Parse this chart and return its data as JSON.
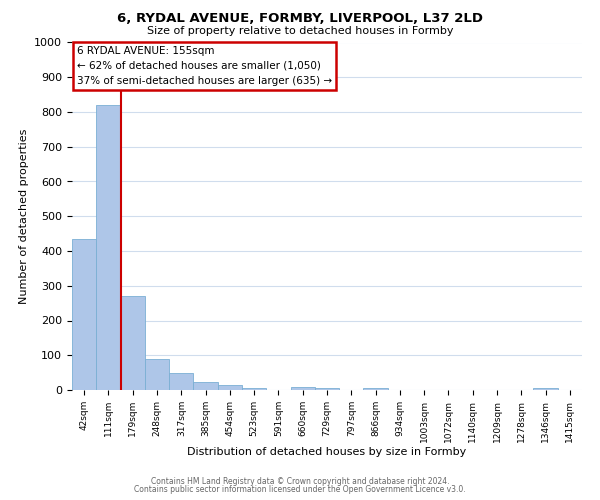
{
  "title1": "6, RYDAL AVENUE, FORMBY, LIVERPOOL, L37 2LD",
  "title2": "Size of property relative to detached houses in Formby",
  "xlabel": "Distribution of detached houses by size in Formby",
  "ylabel": "Number of detached properties",
  "bar_labels": [
    "42sqm",
    "111sqm",
    "179sqm",
    "248sqm",
    "317sqm",
    "385sqm",
    "454sqm",
    "523sqm",
    "591sqm",
    "660sqm",
    "729sqm",
    "797sqm",
    "866sqm",
    "934sqm",
    "1003sqm",
    "1072sqm",
    "1140sqm",
    "1209sqm",
    "1278sqm",
    "1346sqm",
    "1415sqm"
  ],
  "bar_heights": [
    435,
    820,
    270,
    90,
    48,
    22,
    15,
    5,
    0,
    8,
    5,
    0,
    5,
    0,
    0,
    0,
    0,
    0,
    0,
    5,
    0
  ],
  "bar_color": "#aec6e8",
  "bar_edge_color": "#7aafd4",
  "ylim": [
    0,
    1000
  ],
  "yticks": [
    0,
    100,
    200,
    300,
    400,
    500,
    600,
    700,
    800,
    900,
    1000
  ],
  "property_line_color": "#cc0000",
  "annotation_title": "6 RYDAL AVENUE: 155sqm",
  "annotation_line1": "← 62% of detached houses are smaller (1,050)",
  "annotation_line2": "37% of semi-detached houses are larger (635) →",
  "annotation_box_color": "#cc0000",
  "footer1": "Contains HM Land Registry data © Crown copyright and database right 2024.",
  "footer2": "Contains public sector information licensed under the Open Government Licence v3.0.",
  "background_color": "#ffffff",
  "grid_color": "#d0dded"
}
